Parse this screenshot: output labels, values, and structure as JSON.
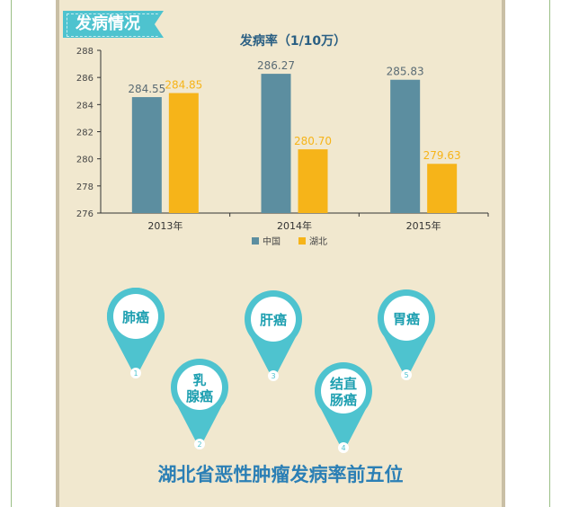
{
  "section_label": "发病情况",
  "colors": {
    "china": "#5c8ea0",
    "hubei": "#f6b419",
    "teal": "#4ec3cf",
    "pin_text": "#1d9fb0",
    "title_blue": "#2b7fb5"
  },
  "chart_data": {
    "type": "bar",
    "title": "发病率（1/10万）",
    "categories": [
      "2013年",
      "2014年",
      "2015年"
    ],
    "series": [
      {
        "name": "中国",
        "values": [
          284.55,
          286.27,
          285.83
        ],
        "labels": [
          "284.55",
          "286.27",
          "285.83"
        ]
      },
      {
        "name": "湖北",
        "values": [
          284.85,
          280.7,
          279.63
        ],
        "labels": [
          "284.85",
          "280.70",
          "279.63"
        ]
      }
    ],
    "ylim": [
      276,
      288
    ],
    "yticks": [
      "276",
      "278",
      "280",
      "282",
      "284",
      "286",
      "288"
    ],
    "grid": false,
    "legend": "bottom"
  },
  "cancers": [
    {
      "label": "肺癌",
      "number": "1"
    },
    {
      "label": "乳\n腺癌",
      "number": "2"
    },
    {
      "label": "肝癌",
      "number": "3"
    },
    {
      "label": "结直\n肠癌",
      "number": "4"
    },
    {
      "label": "胃癌",
      "number": "5"
    }
  ],
  "bottom_title": "湖北省恶性肿瘤发病率前五位"
}
